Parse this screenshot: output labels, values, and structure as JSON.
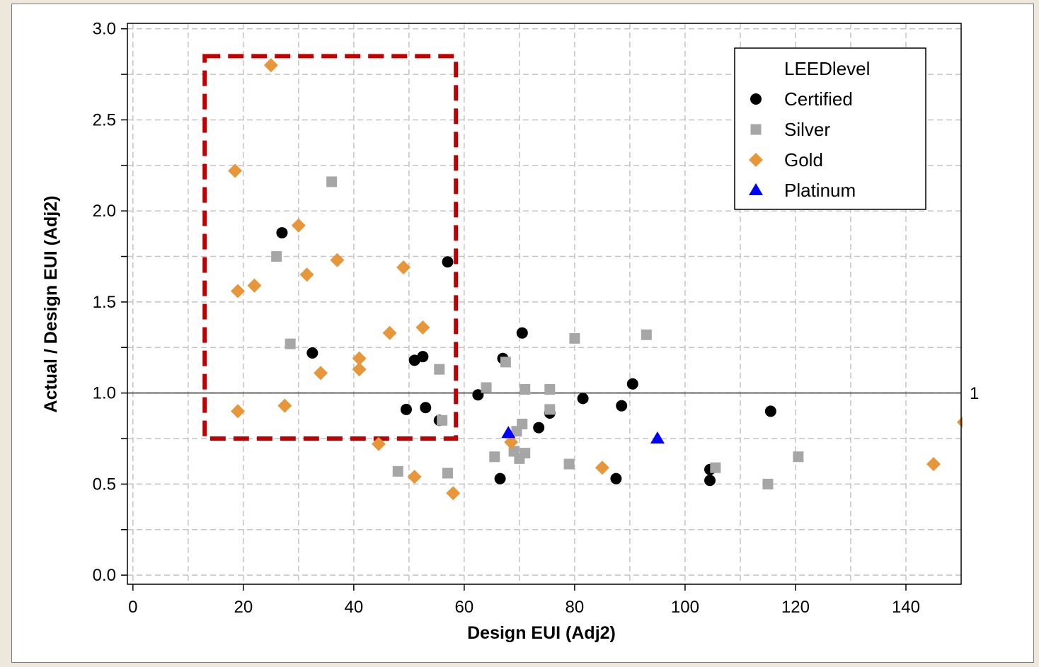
{
  "chart_data": {
    "type": "scatter",
    "xlabel": "Design EUI (Adj2)",
    "ylabel": "Actual / Design EUI (Adj2)",
    "xlim": [
      -1,
      150
    ],
    "ylim": [
      -0.05,
      3.03
    ],
    "xticks": [
      0,
      20,
      40,
      60,
      80,
      100,
      120,
      140
    ],
    "yticks": [
      0.0,
      0.5,
      1.0,
      1.5,
      2.0,
      2.5,
      3.0
    ],
    "xtick_labels": [
      "0",
      "20",
      "40",
      "60",
      "80",
      "100",
      "120",
      "140"
    ],
    "ytick_labels": [
      "0.0",
      "0.5",
      "1.0",
      "1.5",
      "2.0",
      "2.5",
      "3.0"
    ],
    "grid": true,
    "reference_line": {
      "y": 1.0,
      "label": "1"
    },
    "highlight_box": {
      "x": [
        13,
        58.5
      ],
      "y": [
        0.75,
        2.85
      ],
      "style": "dashed",
      "color": "#c00000"
    },
    "legend": {
      "title": "LEEDlevel",
      "placement": "top-right"
    },
    "series": [
      {
        "name": "Certified",
        "marker": "circle",
        "color": "#000000",
        "x": [
          27,
          32.5,
          49.5,
          51,
          52.5,
          53,
          55.5,
          57,
          62.5,
          66.5,
          67,
          70.5,
          73.5,
          75.5,
          81.5,
          87.5,
          88.5,
          90.5,
          104.5,
          104.5,
          115.5
        ],
        "y": [
          1.88,
          1.22,
          0.91,
          1.18,
          1.2,
          0.92,
          0.85,
          1.72,
          0.99,
          0.53,
          1.19,
          1.33,
          0.81,
          0.89,
          0.97,
          0.53,
          0.93,
          1.05,
          0.58,
          0.52,
          0.9
        ]
      },
      {
        "name": "Silver",
        "marker": "square",
        "color": "#a6a6a6",
        "x": [
          26,
          28.5,
          36,
          48,
          55.5,
          56,
          57,
          64,
          65.5,
          67.5,
          69,
          69.5,
          70,
          70.5,
          71,
          71,
          75.5,
          75.5,
          79,
          80,
          93,
          105.5,
          115,
          120.5
        ],
        "y": [
          1.75,
          1.27,
          2.16,
          0.57,
          1.13,
          0.85,
          0.56,
          1.03,
          0.65,
          1.17,
          0.68,
          0.79,
          0.64,
          0.83,
          1.02,
          0.67,
          1.02,
          0.91,
          0.61,
          1.3,
          1.32,
          0.59,
          0.5,
          0.65
        ]
      },
      {
        "name": "Gold",
        "marker": "diamond",
        "color": "#e8963a",
        "x": [
          18.5,
          19,
          19,
          22,
          25,
          27.5,
          30,
          31.5,
          34,
          37,
          41,
          41,
          44.5,
          46.5,
          49,
          51,
          52.5,
          58,
          68.5,
          85,
          145,
          150.5
        ],
        "y": [
          2.22,
          1.56,
          0.9,
          1.59,
          2.8,
          0.93,
          1.92,
          1.65,
          1.11,
          1.73,
          1.19,
          1.13,
          0.72,
          1.33,
          1.69,
          0.54,
          1.36,
          0.45,
          0.73,
          0.59,
          0.61,
          0.84
        ]
      },
      {
        "name": "Platinum",
        "marker": "triangle",
        "color": "#0000ff",
        "x": [
          68,
          95
        ],
        "y": [
          0.78,
          0.75
        ]
      }
    ]
  }
}
